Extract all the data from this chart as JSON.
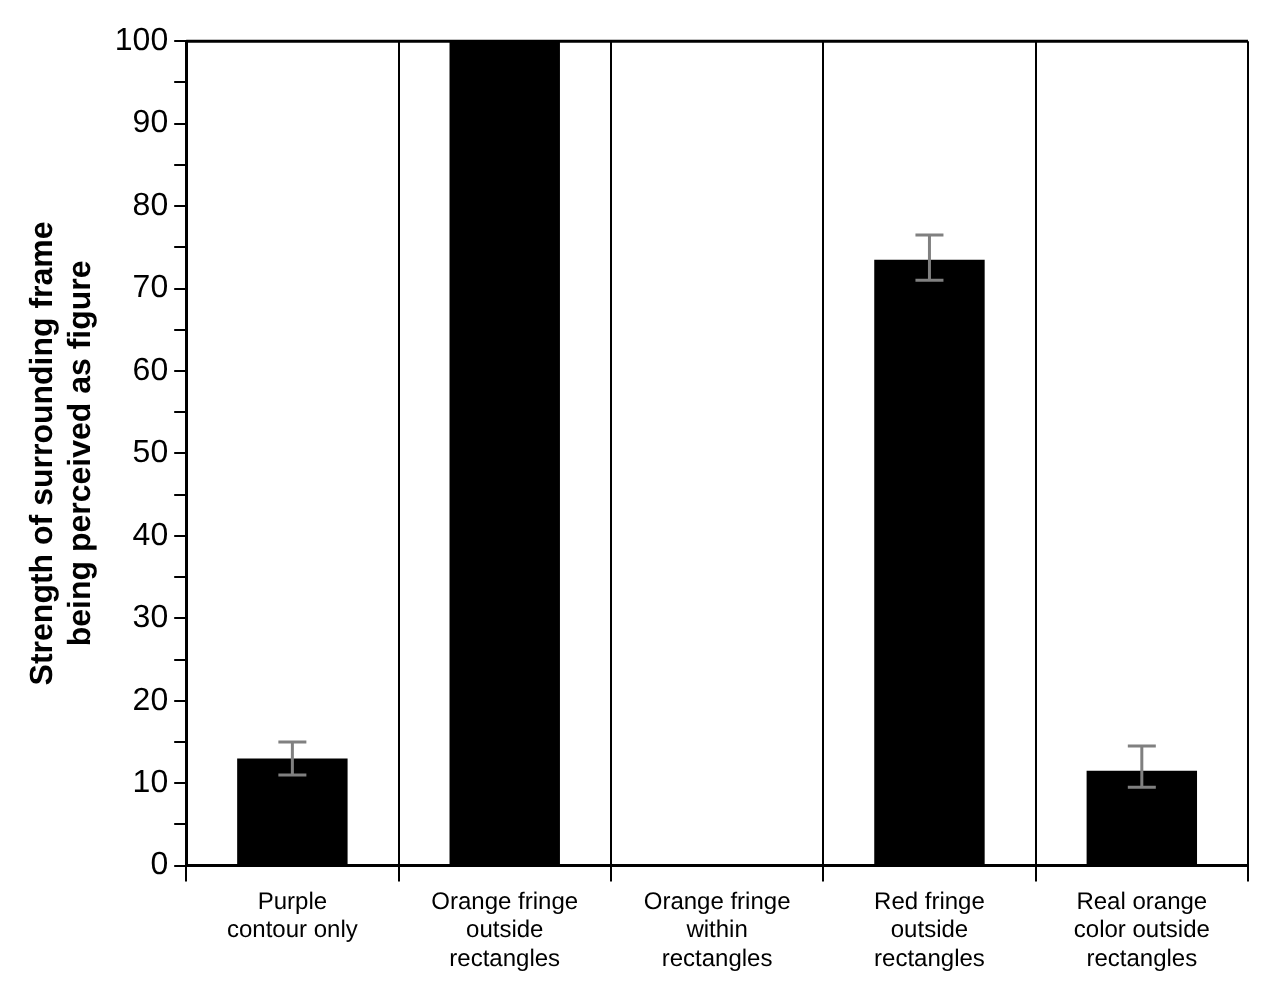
{
  "chart_data": {
    "type": "bar",
    "ylabel": "Strength of surrounding frame being perceived as figure",
    "categories": [
      "Purple contour only",
      "Orange fringe outside rectangles",
      "Orange fringe within rectangles",
      "Red fringe outside rectangles",
      "Real orange color outside rectangles"
    ],
    "values": [
      13,
      100,
      0,
      73.5,
      11.5
    ],
    "errors": [
      2,
      null,
      null,
      [
        71,
        76.5
      ],
      [
        9.5,
        14.5
      ]
    ],
    "color": "#000000",
    "ylim": [
      0,
      100
    ],
    "yticks": [
      0,
      {
        "value": 5,
        "label": null
      },
      10,
      {
        "value": 15,
        "label": null
      },
      20,
      {
        "value": 25,
        "label": null
      },
      30,
      {
        "value": 35,
        "label": null
      },
      40,
      {
        "value": 45,
        "label": null
      },
      50,
      {
        "value": 55,
        "label": null
      },
      60,
      {
        "value": 65,
        "label": null
      },
      70,
      {
        "value": 75,
        "label": null
      },
      80,
      {
        "value": 85,
        "label": null
      },
      90,
      {
        "value": 95,
        "label": null
      },
      100
    ],
    "grid": "x",
    "legend": false
  }
}
